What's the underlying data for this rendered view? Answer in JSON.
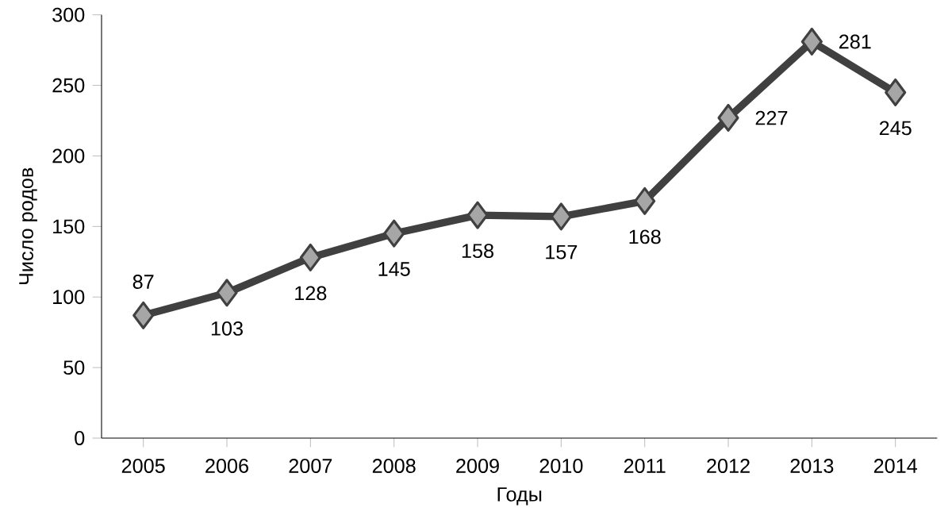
{
  "chart_data": {
    "type": "line",
    "xlabel": "Годы",
    "ylabel": "Число родов",
    "categories": [
      "2005",
      "2006",
      "2007",
      "2008",
      "2009",
      "2010",
      "2011",
      "2012",
      "2013",
      "2014"
    ],
    "values": [
      87,
      103,
      128,
      145,
      158,
      157,
      168,
      227,
      281,
      245
    ],
    "color": "#404040",
    "marker": "diamond",
    "line_style": "solid",
    "ylim": [
      0,
      300
    ],
    "yticks": [
      0,
      50,
      100,
      150,
      200,
      250,
      300
    ],
    "data_labels": true,
    "grid": false
  }
}
